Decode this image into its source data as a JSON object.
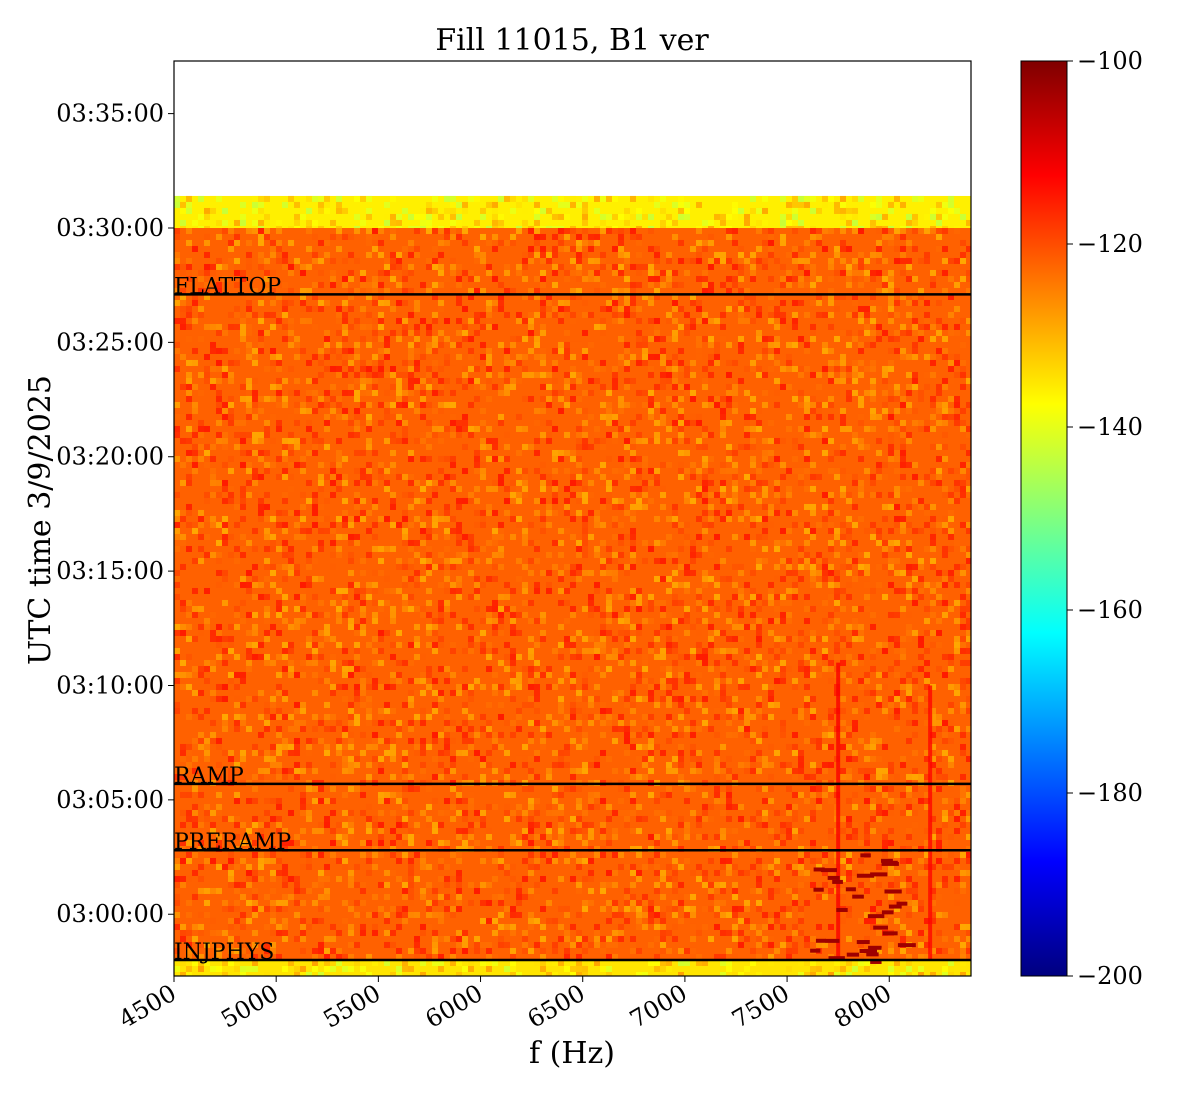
{
  "chart_data": {
    "type": "heatmap",
    "title": "Fill 11015, B1 ver",
    "xlabel": "f (Hz)",
    "ylabel": "UTC time 3/9/2025",
    "xlim": [
      4500,
      8400
    ],
    "ylim_time": [
      "02:57:18",
      "03:37:18"
    ],
    "x_ticks": [
      4500,
      5000,
      5500,
      6000,
      6500,
      7000,
      7500,
      8000
    ],
    "x_tick_labels": [
      "4500",
      "5000",
      "5500",
      "6000",
      "6500",
      "7000",
      "7500",
      "8000"
    ],
    "x_tick_rotation": "30deg",
    "y_ticks": [
      "03:00:00",
      "03:05:00",
      "03:10:00",
      "03:15:00",
      "03:20:00",
      "03:25:00",
      "03:30:00",
      "03:35:00"
    ],
    "colormap": "jet",
    "color_range": [
      -200,
      -100
    ],
    "colorbar_ticks": [
      "−100",
      "−120",
      "−140",
      "−160",
      "−180",
      "−200"
    ],
    "colorbar_tick_values": [
      -100,
      -120,
      -140,
      -160,
      -180,
      -200
    ],
    "data_time_range": [
      "02:57:18",
      "03:31:24"
    ],
    "data_regions": [
      {
        "from": "02:57:18",
        "to": "02:58:00",
        "level_db": -135
      },
      {
        "from": "02:58:00",
        "to": "03:30:00",
        "level_db": -122
      },
      {
        "from": "03:30:00",
        "to": "03:31:24",
        "level_db": -136
      }
    ],
    "features": [
      {
        "kind": "line",
        "freq_hz": 7750,
        "from": "02:58:00",
        "to": "03:11:00",
        "level_db": -112
      },
      {
        "kind": "line",
        "freq_hz": 8200,
        "from": "02:58:00",
        "to": "03:10:00",
        "level_db": -113
      },
      {
        "kind": "spots",
        "freq_range_hz": [
          7600,
          8050
        ],
        "from": "02:58:00",
        "to": "03:02:48",
        "level_db": -103
      }
    ],
    "markers": [
      {
        "label": "FLATTOP",
        "time": "03:27:06"
      },
      {
        "label": "RAMP",
        "time": "03:05:42"
      },
      {
        "label": "PRERAMP",
        "time": "03:02:48"
      },
      {
        "label": "INJPHYS",
        "time": "02:58:00"
      }
    ]
  }
}
